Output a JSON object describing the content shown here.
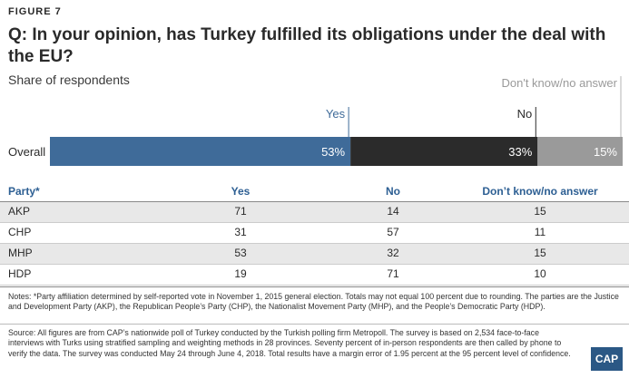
{
  "figure_label": "FIGURE 7",
  "title": "Q: In your opinion, has Turkey fulfilled its obligations under the deal with the EU?",
  "subtitle": "Share of respondents",
  "colors": {
    "yes": "#3f6b99",
    "no": "#2b2b2b",
    "dk": "#9a9a9a",
    "header": "#2d5f93",
    "logo": "#2b5885"
  },
  "chart_data": {
    "type": "bar",
    "orientation": "horizontal-stacked",
    "categories": [
      "Overall"
    ],
    "series": [
      {
        "name": "Yes",
        "values": [
          53
        ],
        "label": "53%"
      },
      {
        "name": "No",
        "values": [
          33
        ],
        "label": "33%"
      },
      {
        "name": "Don't know/no answer",
        "values": [
          15
        ],
        "label": "15%"
      }
    ],
    "total": 101
  },
  "table": {
    "headers": [
      "Party*",
      "Yes",
      "No",
      "Don’t know/no answer"
    ],
    "rows": [
      [
        "AKP",
        "71",
        "14",
        "15"
      ],
      [
        "CHP",
        "31",
        "57",
        "11"
      ],
      [
        "MHP",
        "53",
        "32",
        "15"
      ],
      [
        "HDP",
        "19",
        "71",
        "10"
      ]
    ]
  },
  "notes": "Notes: *Party affiliation determined by self-reported vote in November 1, 2015 general election. Totals may not equal 100 percent due to rounding. The parties are the Justice and Development Party (AKP), the Republican People’s Party (CHP), the Nationalist Movement Party (MHP), and the People’s Democratic Party (HDP).",
  "source": "Source: All figures are from CAP’s nationwide poll of Turkey conducted by the Turkish polling firm Metropoll. The survey is based on 2,534 face-to-face interviews with Turks using stratified sampling and weighting methods in 28 provinces. Seventy percent of in-person respondents are then called by phone to verify the data. The survey was conducted May 24 through June 4, 2018. Total results have a margin error of 1.95 percent at the 95 percent level of confidence.",
  "logo_text": "CAP"
}
